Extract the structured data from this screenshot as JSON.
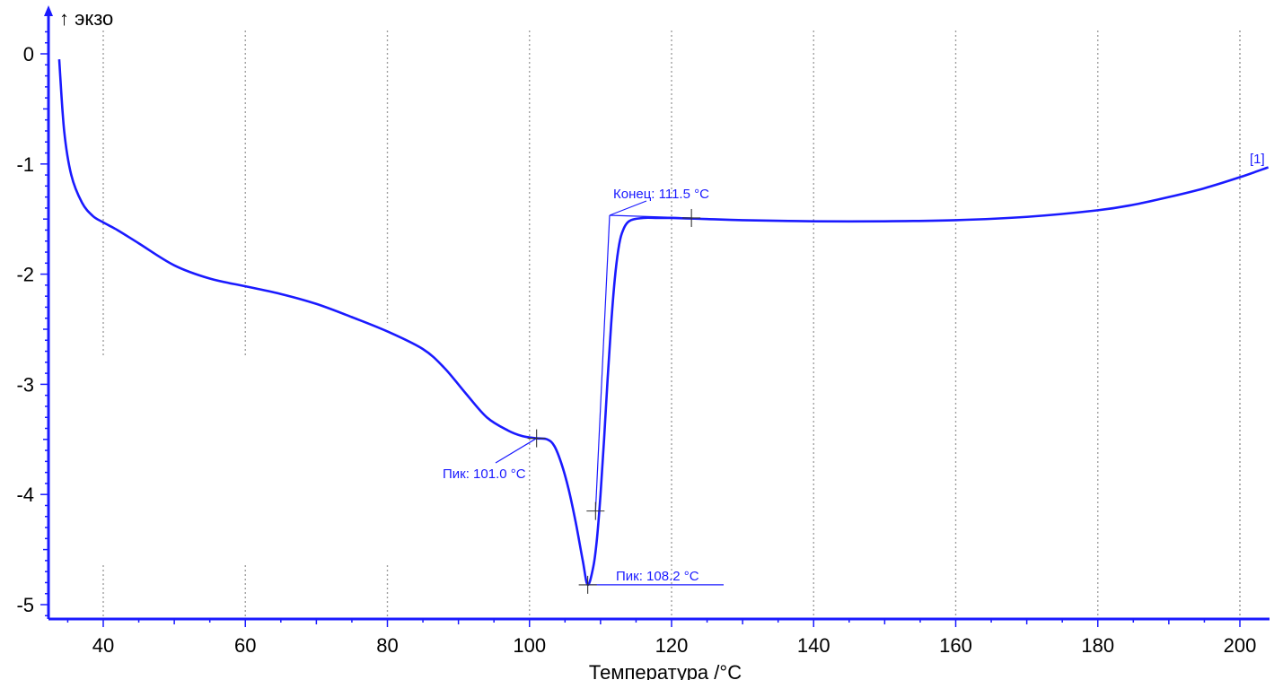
{
  "chart_data": {
    "type": "line",
    "title": "",
    "xlabel": "Температура /°C",
    "ylabel": "↑ экзо",
    "xlim": [
      32.5,
      204
    ],
    "ylim": [
      -5.15,
      0.25
    ],
    "x_ticks": [
      40,
      60,
      80,
      100,
      120,
      140,
      160,
      180,
      200
    ],
    "y_ticks": [
      0,
      -1,
      -2,
      -3,
      -4,
      -5
    ],
    "x_tick_labels": [
      "40",
      "60",
      "80",
      "100",
      "120",
      "140",
      "160",
      "180",
      "200"
    ],
    "y_tick_labels": [
      "0",
      "-1",
      "-2",
      "-3",
      "-4",
      "-5"
    ],
    "grid": "vertical-dotted",
    "colors": {
      "series": "#1a1aff",
      "annotation": "#1a1aff",
      "grid": "#a0a0a0",
      "axis": "#1a1aff"
    },
    "series": [
      {
        "name": "[1]",
        "x": [
          33.8,
          34.5,
          35.5,
          37,
          38.5,
          40,
          42,
          45,
          50,
          55,
          60,
          65,
          70,
          75,
          80,
          85,
          88,
          91,
          94,
          97,
          99,
          101,
          102.5,
          103.5,
          104.5,
          105.5,
          106.5,
          107.5,
          108.2,
          109,
          109.5,
          110,
          110.5,
          111,
          111.5,
          112,
          112.5,
          113,
          114,
          116,
          118,
          120,
          125,
          130,
          140,
          150,
          160,
          170,
          180,
          185,
          190,
          195,
          200,
          204
        ],
        "y": [
          -0.05,
          -0.7,
          -1.1,
          -1.35,
          -1.47,
          -1.53,
          -1.6,
          -1.72,
          -1.92,
          -2.04,
          -2.11,
          -2.18,
          -2.27,
          -2.39,
          -2.52,
          -2.68,
          -2.85,
          -3.08,
          -3.3,
          -3.42,
          -3.47,
          -3.49,
          -3.5,
          -3.56,
          -3.72,
          -3.95,
          -4.25,
          -4.6,
          -4.82,
          -4.65,
          -4.4,
          -4.0,
          -3.5,
          -2.95,
          -2.45,
          -2.05,
          -1.78,
          -1.63,
          -1.52,
          -1.49,
          -1.49,
          -1.49,
          -1.5,
          -1.51,
          -1.52,
          -1.52,
          -1.51,
          -1.48,
          -1.42,
          -1.37,
          -1.3,
          -1.22,
          -1.12,
          -1.03
        ]
      }
    ],
    "annotations": [
      {
        "label": "Конец: 111.5 °C",
        "x": 111.5,
        "y": -1.49
      },
      {
        "label": "Пик: 101.0 °C",
        "x": 101.0,
        "y": -3.49
      },
      {
        "label": "Пик: 108.2 °C",
        "x": 108.2,
        "y": -4.82
      }
    ],
    "curve_label": "[1]"
  }
}
